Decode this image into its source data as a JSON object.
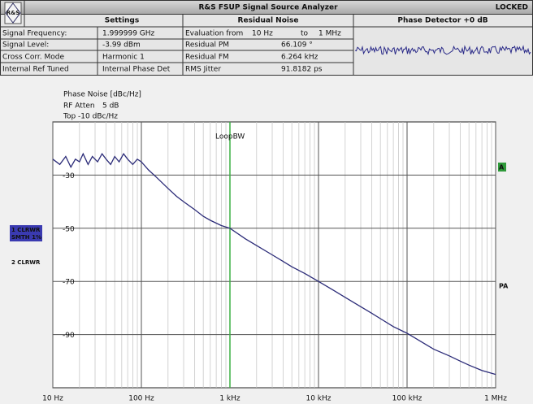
{
  "header": {
    "logo": "R&S",
    "title": "R&S FSUP Signal Source Analyzer",
    "status": "LOCKED",
    "columns": [
      "Settings",
      "Residual Noise",
      "Phase Detector +0 dB"
    ],
    "settings": [
      [
        "Signal Frequency:",
        "1.999999 GHz"
      ],
      [
        "Signal Level:",
        "-3.99 dBm"
      ],
      [
        "Cross Corr. Mode",
        "Harmonic 1"
      ],
      [
        "Internal Ref Tuned",
        "Internal Phase Det"
      ]
    ],
    "residual": [
      [
        "Evaluation from",
        "10 Hz",
        "to",
        "1 MHz"
      ],
      [
        "Residual PM",
        "66.109 °"
      ],
      [
        "Residual FM",
        "6.264 kHz"
      ],
      [
        "RMS Jitter",
        "91.8182 ps"
      ]
    ]
  },
  "chart_data": {
    "type": "line",
    "y_label": "Phase Noise [dBc/Hz]",
    "info": [
      [
        "RF Atten",
        "5 dB"
      ],
      [
        "Top -10 dBc/Hz"
      ]
    ],
    "x": [
      10,
      12,
      14,
      16,
      18,
      20,
      22,
      25,
      28,
      32,
      36,
      40,
      45,
      50,
      56,
      63,
      70,
      80,
      90,
      100,
      120,
      150,
      200,
      250,
      300,
      400,
      500,
      600,
      800,
      1000,
      1500,
      2000,
      3000,
      4000,
      5000,
      7000,
      10000,
      15000,
      20000,
      30000,
      40000,
      50000,
      70000,
      100000,
      150000,
      200000,
      300000,
      400000,
      500000,
      700000,
      1000000
    ],
    "values": [
      -24,
      -26,
      -23,
      -27,
      -24,
      -25,
      -22,
      -26,
      -23,
      -25,
      -22,
      -24,
      -26,
      -23,
      -25,
      -22,
      -24,
      -26,
      -24,
      -25,
      -28,
      -31,
      -35,
      -38,
      -40,
      -43,
      -45.5,
      -47,
      -49,
      -50,
      -54,
      -56.5,
      -60,
      -62.5,
      -64.5,
      -67,
      -70,
      -73.5,
      -76,
      -79.5,
      -82,
      -84,
      -87,
      -89.5,
      -93,
      -95.5,
      -98,
      -100,
      -101.5,
      -103.5,
      -105
    ],
    "color": "#2b2b78",
    "log_x": true,
    "xlim": [
      10,
      1000000
    ],
    "xticks": [
      {
        "value": 10,
        "label": "10 Hz"
      },
      {
        "value": 100,
        "label": "100 Hz"
      },
      {
        "value": 1000,
        "label": "1 kHz"
      },
      {
        "value": 10000,
        "label": "10 kHz"
      },
      {
        "value": 100000,
        "label": "100 kHz"
      },
      {
        "value": 1000000,
        "label": "1 MHz"
      }
    ],
    "ylim": [
      -110,
      -10
    ],
    "yticks": [
      -90,
      -70,
      -50,
      -30
    ],
    "grid": true,
    "annotations": [
      {
        "label": "LoopBW",
        "x": 1000,
        "color": "#3cb043"
      }
    ],
    "trace_labels": [
      [
        "1 CLRWR",
        "SMTH 1%"
      ],
      [
        "2 CLRWR"
      ]
    ],
    "side_labels": [
      "A",
      "PA"
    ]
  }
}
